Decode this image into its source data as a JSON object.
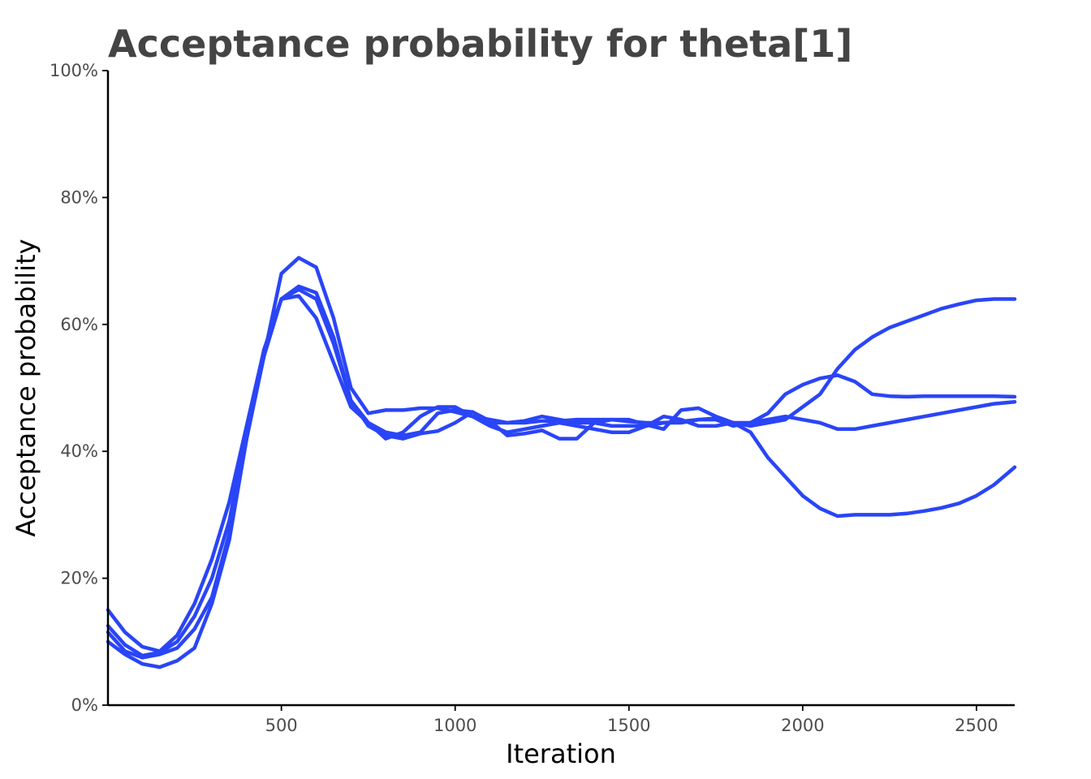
{
  "chart_data": {
    "type": "line",
    "title": "Acceptance probability for theta[1]",
    "xlabel": "Iteration",
    "ylabel": "Acceptance probability",
    "xlim": [
      1,
      2610
    ],
    "ylim": [
      0,
      1
    ],
    "x_ticks": [
      500,
      1000,
      1500,
      2000,
      2500
    ],
    "x_tick_labels": [
      "500",
      "1000",
      "1500",
      "2000",
      "2500"
    ],
    "y_ticks": [
      0,
      0.2,
      0.4,
      0.6,
      0.8,
      1.0
    ],
    "y_tick_labels": [
      "0%",
      "20%",
      "40%",
      "60%",
      "80%",
      "100%"
    ],
    "grid": false,
    "legend": "none",
    "line_color": "#2a45f7",
    "x": [
      1,
      50,
      100,
      150,
      200,
      250,
      300,
      350,
      400,
      450,
      500,
      550,
      600,
      650,
      700,
      750,
      800,
      850,
      900,
      950,
      1000,
      1050,
      1100,
      1150,
      1200,
      1250,
      1300,
      1350,
      1400,
      1450,
      1500,
      1550,
      1600,
      1650,
      1700,
      1750,
      1800,
      1850,
      1900,
      1950,
      2000,
      2050,
      2100,
      2150,
      2200,
      2250,
      2300,
      2350,
      2400,
      2450,
      2500,
      2550,
      2610
    ],
    "series": [
      {
        "values": [
          0.15,
          0.115,
          0.092,
          0.085,
          0.11,
          0.16,
          0.23,
          0.32,
          0.44,
          0.56,
          0.64,
          0.645,
          0.61,
          0.54,
          0.47,
          0.445,
          0.42,
          0.43,
          0.455,
          0.47,
          0.47,
          0.455,
          0.44,
          0.43,
          0.435,
          0.44,
          0.445,
          0.44,
          0.435,
          0.43,
          0.43,
          0.44,
          0.455,
          0.45,
          0.44,
          0.44,
          0.445,
          0.445,
          0.45,
          0.455,
          0.45,
          0.445,
          0.435,
          0.435,
          0.44,
          0.445,
          0.45,
          0.455,
          0.46,
          0.465,
          0.47,
          0.475,
          0.478
        ]
      },
      {
        "values": [
          0.125,
          0.095,
          0.078,
          0.083,
          0.1,
          0.14,
          0.2,
          0.29,
          0.43,
          0.55,
          0.68,
          0.705,
          0.69,
          0.61,
          0.5,
          0.46,
          0.465,
          0.465,
          0.468,
          0.468,
          0.462,
          0.455,
          0.45,
          0.445,
          0.445,
          0.448,
          0.448,
          0.45,
          0.45,
          0.45,
          0.447,
          0.445,
          0.445,
          0.447,
          0.45,
          0.45,
          0.44,
          0.445,
          0.46,
          0.49,
          0.505,
          0.515,
          0.52,
          0.51,
          0.49,
          0.487,
          0.486,
          0.487,
          0.487,
          0.487,
          0.487,
          0.487,
          0.486
        ]
      },
      {
        "values": [
          0.115,
          0.085,
          0.075,
          0.08,
          0.09,
          0.12,
          0.17,
          0.27,
          0.42,
          0.55,
          0.64,
          0.655,
          0.64,
          0.57,
          0.48,
          0.445,
          0.43,
          0.425,
          0.43,
          0.46,
          0.465,
          0.462,
          0.445,
          0.445,
          0.448,
          0.455,
          0.45,
          0.445,
          0.445,
          0.44,
          0.44,
          0.44,
          0.445,
          0.445,
          0.45,
          0.452,
          0.445,
          0.43,
          0.39,
          0.36,
          0.33,
          0.31,
          0.298,
          0.3,
          0.3,
          0.3,
          0.302,
          0.306,
          0.311,
          0.318,
          0.33,
          0.347,
          0.375
        ]
      },
      {
        "values": [
          0.1,
          0.08,
          0.065,
          0.06,
          0.07,
          0.09,
          0.16,
          0.26,
          0.42,
          0.56,
          0.64,
          0.66,
          0.65,
          0.58,
          0.48,
          0.44,
          0.425,
          0.42,
          0.428,
          0.432,
          0.445,
          0.462,
          0.448,
          0.425,
          0.428,
          0.433,
          0.42,
          0.42,
          0.445,
          0.45,
          0.45,
          0.442,
          0.435,
          0.465,
          0.468,
          0.455,
          0.445,
          0.44,
          0.445,
          0.45,
          0.47,
          0.49,
          0.53,
          0.56,
          0.58,
          0.595,
          0.605,
          0.615,
          0.625,
          0.632,
          0.638,
          0.64,
          0.64
        ]
      }
    ]
  }
}
